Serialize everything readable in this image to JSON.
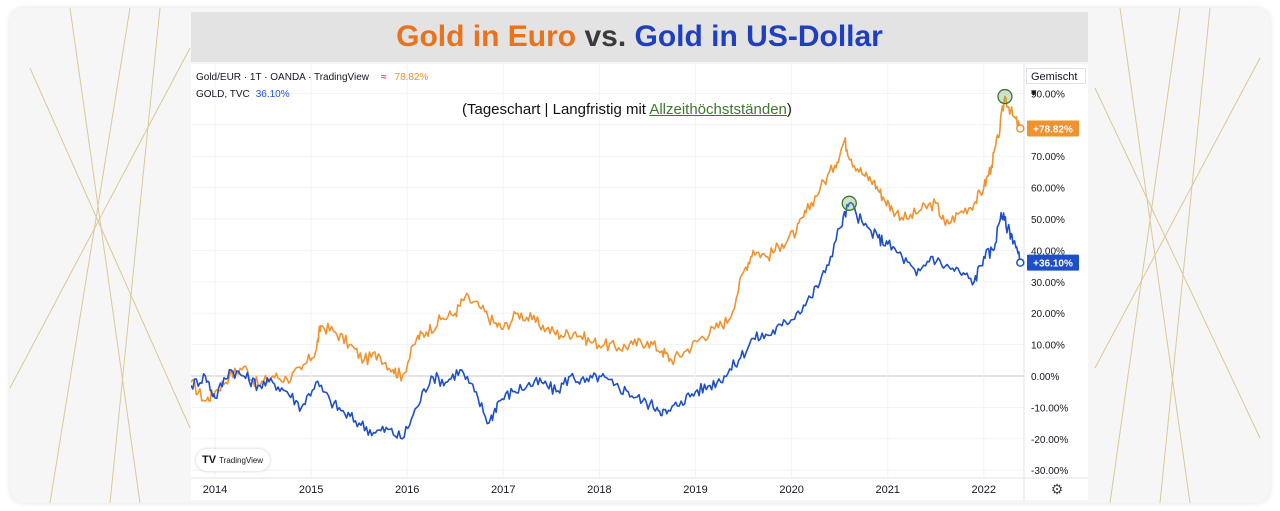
{
  "title": {
    "part_eur": "Gold in Euro",
    "part_vs": " vs. ",
    "part_usd": "Gold in US-Dollar"
  },
  "subtitle": {
    "prefix": "(Tageschart | Langfristig mit ",
    "link": "Allzeithöchstständen",
    "suffix": ")"
  },
  "legend": {
    "main_symbol": "Gold/EUR · 1T · OANDA · TradingView",
    "main_icon": "≈",
    "main_value": "78.82%",
    "compare_symbol": "GOLD, TVC",
    "compare_value": "36.10%"
  },
  "scale_mode": "Gemischt",
  "watermark": {
    "logo_icon": "tradingview-logo-icon",
    "label": "TradingView"
  },
  "settings_icon": "gear-icon",
  "colors": {
    "eur": "#f0932f",
    "usd": "#1e4fc9",
    "title_eur": "#e8731c",
    "title_usd": "#1f3fbf",
    "ath_marker": "#3b7a2a"
  },
  "chart_data": {
    "type": "line",
    "ylabel": "",
    "xlabel": "",
    "ylim": [
      -30,
      95
    ],
    "y_unit": "%",
    "y_ticks": [
      "90.00%",
      "80.00%",
      "70.00%",
      "60.00%",
      "50.00%",
      "40.00%",
      "30.00%",
      "20.00%",
      "10.00%",
      "0.00%",
      "-10.00%",
      "-20.00%",
      "-30.00%"
    ],
    "x_ticks": [
      "2014",
      "2015",
      "2016",
      "2017",
      "2018",
      "2019",
      "2020",
      "2021",
      "2022"
    ],
    "xlim": [
      2013.75,
      2022.5
    ],
    "grid": true,
    "series": [
      {
        "name": "Gold/EUR · 1T · OANDA · TradingView",
        "color": "#f0932f",
        "last_label": "+78.82%",
        "x": [
          2013.75,
          2013.9,
          2014.0,
          2014.15,
          2014.3,
          2014.45,
          2014.6,
          2014.75,
          2014.9,
          2015.05,
          2015.1,
          2015.25,
          2015.4,
          2015.55,
          2015.7,
          2015.85,
          2015.95,
          2016.1,
          2016.2,
          2016.35,
          2016.5,
          2016.6,
          2016.75,
          2016.9,
          2017.0,
          2017.15,
          2017.3,
          2017.45,
          2017.6,
          2017.75,
          2017.9,
          2018.05,
          2018.2,
          2018.35,
          2018.5,
          2018.65,
          2018.75,
          2018.9,
          2019.05,
          2019.2,
          2019.35,
          2019.5,
          2019.6,
          2019.75,
          2019.9,
          2020.05,
          2020.15,
          2020.3,
          2020.45,
          2020.55,
          2020.62,
          2020.75,
          2020.85,
          2020.95,
          2021.05,
          2021.2,
          2021.35,
          2021.5,
          2021.6,
          2021.75,
          2021.9,
          2022.0,
          2022.08,
          2022.15,
          2022.22,
          2022.3,
          2022.38
        ],
        "values": [
          -2,
          -8,
          -5,
          0,
          3,
          -3,
          0,
          -1,
          2,
          8,
          16,
          14,
          10,
          5,
          7,
          2,
          0,
          12,
          14,
          18,
          20,
          25,
          22,
          17,
          15,
          20,
          18,
          15,
          13,
          14,
          11,
          10,
          9,
          10,
          11,
          8,
          5,
          8,
          12,
          15,
          18,
          33,
          40,
          38,
          42,
          46,
          52,
          60,
          67,
          75,
          69,
          64,
          62,
          57,
          53,
          50,
          53,
          55,
          48,
          52,
          55,
          60,
          67,
          76,
          89,
          83,
          78.82
        ]
      },
      {
        "name": "GOLD, TVC",
        "color": "#1e4fc9",
        "last_label": "+36.10%",
        "x": [
          2013.75,
          2013.9,
          2014.0,
          2014.15,
          2014.3,
          2014.45,
          2014.6,
          2014.75,
          2014.9,
          2015.05,
          2015.2,
          2015.35,
          2015.5,
          2015.65,
          2015.8,
          2015.95,
          2016.1,
          2016.25,
          2016.4,
          2016.55,
          2016.7,
          2016.85,
          2016.95,
          2017.1,
          2017.25,
          2017.4,
          2017.55,
          2017.7,
          2017.85,
          2018.0,
          2018.15,
          2018.3,
          2018.45,
          2018.6,
          2018.7,
          2018.85,
          2019.0,
          2019.15,
          2019.3,
          2019.45,
          2019.6,
          2019.75,
          2019.9,
          2020.05,
          2020.2,
          2020.35,
          2020.5,
          2020.6,
          2020.75,
          2020.9,
          2021.0,
          2021.15,
          2021.3,
          2021.45,
          2021.6,
          2021.75,
          2021.9,
          2022.0,
          2022.1,
          2022.18,
          2022.25,
          2022.32,
          2022.38
        ],
        "values": [
          -3,
          0,
          -7,
          2,
          0,
          -3,
          -2,
          -5,
          -10,
          -2,
          -8,
          -12,
          -15,
          -18,
          -17,
          -20,
          -10,
          0,
          -2,
          2,
          -5,
          -15,
          -8,
          -5,
          -3,
          -2,
          -5,
          0,
          -2,
          0,
          -3,
          -5,
          -8,
          -10,
          -12,
          -8,
          -5,
          -3,
          0,
          5,
          12,
          13,
          16,
          20,
          25,
          33,
          47,
          55,
          48,
          44,
          42,
          38,
          32,
          38,
          35,
          33,
          30,
          38,
          40,
          52,
          47,
          43,
          36.1
        ]
      }
    ],
    "annotations": [
      {
        "type": "circle",
        "series": "GOLD, TVC",
        "x": 2020.6,
        "y": 55,
        "meaning": "all-time high"
      },
      {
        "type": "circle",
        "series": "Gold/EUR · 1T · OANDA · TradingView",
        "x": 2022.22,
        "y": 89,
        "meaning": "all-time high"
      }
    ]
  }
}
